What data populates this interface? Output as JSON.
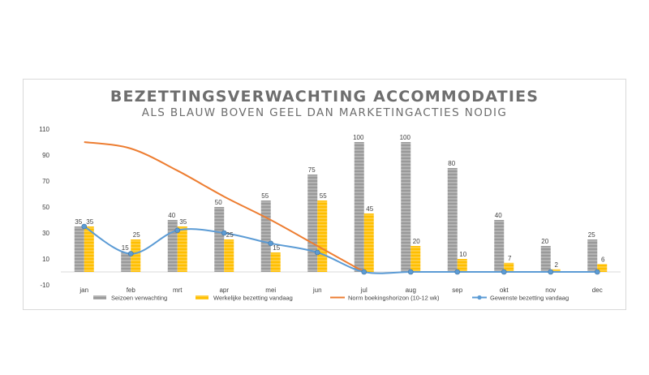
{
  "chart_data": {
    "type": "bar",
    "title": "BEZETTINGSVERWACHTING ACCOMMODATIES",
    "subtitle": "ALS BLAUW BOVEN GEEL DAN MARKETINGACTIES NODIG",
    "categories": [
      "jan",
      "feb",
      "mrt",
      "apr",
      "mei",
      "jun",
      "jul",
      "aug",
      "sep",
      "okt",
      "nov",
      "dec"
    ],
    "ylim": [
      -10,
      110
    ],
    "yticks": [
      -10,
      10,
      30,
      50,
      70,
      90,
      110
    ],
    "grid": false,
    "legend_position": "bottom",
    "series": [
      {
        "name": "Seizoen verwachting",
        "kind": "bar",
        "color": "#a6a6a6",
        "values": [
          35,
          15,
          40,
          50,
          55,
          75,
          100,
          100,
          80,
          40,
          20,
          25
        ]
      },
      {
        "name": "Werkelijke bezetting vandaag",
        "kind": "bar",
        "color": "#ffc000",
        "values": [
          35,
          25,
          35,
          25,
          15,
          55,
          45,
          20,
          10,
          7,
          2,
          6
        ]
      },
      {
        "name": "Norm boekingshorizon (10-12 wk)",
        "kind": "line",
        "color": "#ed7d31",
        "values": [
          100,
          95,
          78,
          58,
          40,
          20,
          0,
          null,
          null,
          null,
          null,
          null
        ]
      },
      {
        "name": "Gewenste bezetting vandaag",
        "kind": "line-markers",
        "color": "#5b9bd5",
        "values": [
          35,
          14,
          32,
          30,
          22,
          15,
          0,
          0,
          0,
          0,
          0,
          0
        ]
      }
    ]
  }
}
